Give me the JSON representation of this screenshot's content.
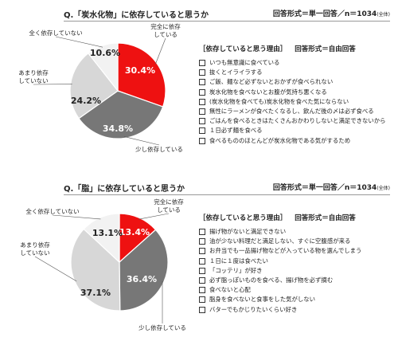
{
  "chart_data": [
    {
      "type": "pie",
      "title": "Q.「炭水化物」に依存していると思うか",
      "format_note": "回答形式＝単一回答／n＝1034",
      "format_suffix": "(全体)",
      "categories": [
        "完全に依存している",
        "少し依存している",
        "あまり依存していない",
        "全く依存していない"
      ],
      "values": [
        30.4,
        34.8,
        24.2,
        10.6
      ],
      "value_labels": [
        "30.4%",
        "34.8%",
        "24.2%",
        "10.6%"
      ],
      "colors": [
        "#ee1111",
        "#777777",
        "#d7d7d7",
        "#f2f2f2"
      ],
      "start_angle_deg": 0,
      "direction": "clockwise",
      "legend": "none",
      "reasons_title": "［依存していると思う理由］",
      "reasons_format": "回答形式＝自由回答",
      "reasons": [
        "いつも無意識に食べている",
        "抜くとイライラする",
        "ご飯、麺など必ずないとおかずが食べられない",
        "炭水化物を食べないとお腹が気持ち悪くなる",
        "(炭水化物を食べても)炭水化物を食べた気にならない",
        "無性にラーメンが食べたくなるし、飲んだ後の〆は必ず食べる",
        "ごはんを食べるときはたくさんおかわりしないと満足できないから",
        "１日必ず麺を食べる",
        "食べるもののほとんどが炭水化物である気がするため"
      ]
    },
    {
      "type": "pie",
      "title": "Q.「脂」に依存していると思うか",
      "format_note": "回答形式＝単一回答／n＝1034",
      "format_suffix": "(全体)",
      "categories": [
        "完全に依存している",
        "少し依存している",
        "あまり依存していない",
        "全く依存していない"
      ],
      "values": [
        13.4,
        36.4,
        37.1,
        13.1
      ],
      "value_labels": [
        "13.4%",
        "36.4%",
        "37.1%",
        "13.1%"
      ],
      "colors": [
        "#ee1111",
        "#777777",
        "#d7d7d7",
        "#f2f2f2"
      ],
      "start_angle_deg": 0,
      "direction": "clockwise",
      "legend": "none",
      "reasons_title": "［依存していると思う理由］",
      "reasons_format": "回答形式＝自由回答",
      "reasons": [
        "揚げ物がないと満足できない",
        "油が少ない料理だと満足しない、すぐに空腹感が来る",
        "お弁当でも一品揚げ物などが入っている物を選んでしまう",
        "１日に１度は食べたい",
        "「コッテリ」が好き",
        "必ず脂っぽいものを食べる、揚げ物を必ず摘む",
        "食べないと心配",
        "脂身を食べないと食事をした気がしない",
        "バターでもかじりたいくらい好き"
      ]
    }
  ]
}
